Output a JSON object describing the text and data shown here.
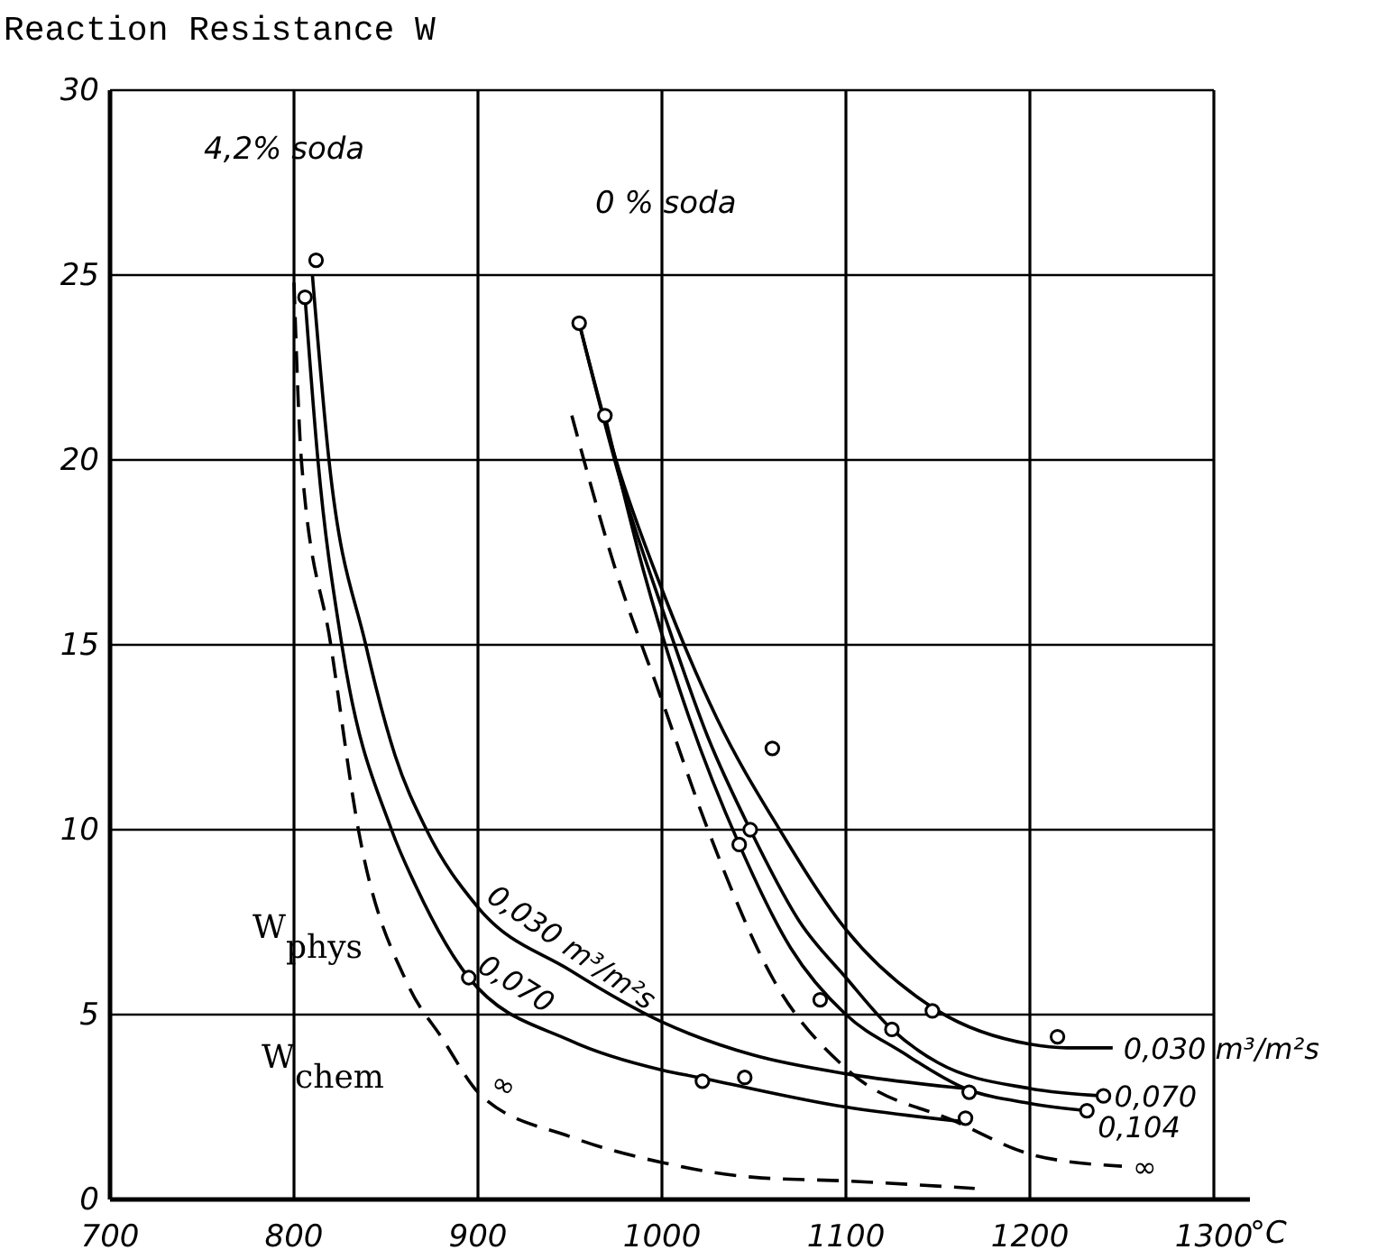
{
  "chart_data": {
    "type": "line",
    "ylabel": "Reaction Resistance W",
    "xlabel": "°C",
    "xlim": [
      700,
      1300
    ],
    "ylim": [
      0,
      30
    ],
    "xticks": [
      700,
      800,
      900,
      1000,
      1100,
      1200,
      1300
    ],
    "yticks": [
      0,
      5,
      10,
      15,
      20,
      25,
      30
    ],
    "grid": true,
    "series": [
      {
        "name": "0,030 m³/m²s",
        "color": "#000000",
        "line_style": "solid",
        "x": [
          810,
          819,
          839,
          855,
          872,
          900,
          950,
          1000,
          1050,
          1100,
          1165
        ],
        "values": [
          25,
          20,
          15,
          12,
          10,
          7.9,
          6.2,
          4.8,
          3.9,
          3.4,
          3.0
        ]
      },
      {
        "name": "0,070",
        "color": "#000000",
        "line_style": "solid",
        "x": [
          806,
          813,
          826,
          853,
          866,
          895,
          950,
          1000,
          1020,
          1100,
          1165
        ],
        "values": [
          24.4,
          20,
          15,
          10,
          8.5,
          6,
          4.3,
          3.5,
          3.3,
          2.5,
          2.1
        ]
      },
      {
        "name": "∞",
        "color": "#000000",
        "line_style": "dashed",
        "x": [
          800,
          804,
          820,
          835,
          862,
          880,
          902,
          950,
          1000,
          1050,
          1100,
          1170
        ],
        "values": [
          24.8,
          20,
          15,
          10,
          5.8,
          4.4,
          2.8,
          1.7,
          1.0,
          0.6,
          0.5,
          0.3
        ]
      },
      {
        "name": "0,030 m³/m²s",
        "color": "#000000",
        "line_style": "solid",
        "x": [
          955,
          975,
          1000,
          1030,
          1064,
          1100,
          1150,
          1200,
          1220,
          1245
        ],
        "values": [
          23.7,
          20,
          16.5,
          13,
          10,
          7.3,
          5.1,
          4.2,
          4.1,
          4.1
        ]
      },
      {
        "name": "0,070",
        "color": "#000000",
        "line_style": "solid",
        "x": [
          955,
          980,
          1000,
          1025,
          1048,
          1075,
          1100,
          1125,
          1150,
          1200,
          1240
        ],
        "values": [
          23.7,
          19,
          16,
          12.5,
          10,
          7.5,
          6,
          4.6,
          3.7,
          3.0,
          2.8
        ]
      },
      {
        "name": "0,104",
        "color": "#000000",
        "line_style": "solid",
        "x": [
          969,
          990,
          1015,
          1042,
          1070,
          1100,
          1130,
          1165,
          1200,
          1231
        ],
        "values": [
          21.2,
          17,
          13,
          9.6,
          6.8,
          5.0,
          4.0,
          3.0,
          2.6,
          2.4
        ]
      },
      {
        "name": "∞",
        "color": "#000000",
        "line_style": "dashed",
        "x": [
          951,
          975,
          1000,
          1025,
          1060,
          1101,
          1160,
          1202,
          1250
        ],
        "values": [
          21.2,
          17,
          13.5,
          10,
          6,
          3.5,
          2.1,
          1.2,
          0.9
        ]
      },
      {
        "type": "scatter",
        "color": "#000000",
        "marker": "circle",
        "x": [
          812,
          806,
          895,
          1022,
          1045,
          1165,
          955,
          969,
          1060,
          1048,
          1042,
          1086,
          1125,
          1147,
          1167,
          1215,
          1240,
          1231
        ],
        "values": [
          25.4,
          24.4,
          6,
          3.2,
          3.3,
          2.2,
          23.7,
          21.2,
          12.2,
          10,
          9.6,
          5.4,
          4.6,
          5.1,
          2.9,
          4.4,
          2.8,
          2.4
        ]
      }
    ],
    "annotations": [
      "4,2% soda",
      "0 % soda",
      "W$_{phys}$",
      "W$_{chem}$"
    ]
  }
}
